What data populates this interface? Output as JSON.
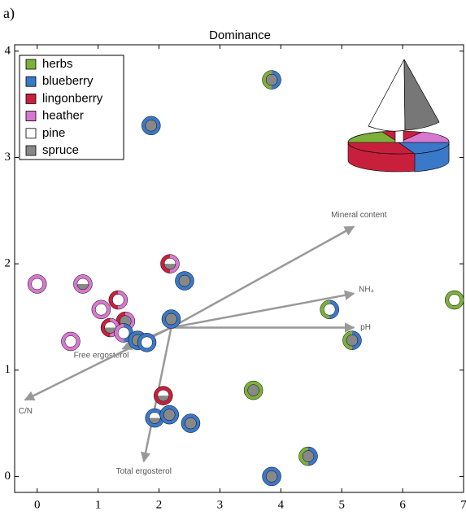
{
  "panel_label": "a)",
  "chart_data": {
    "type": "scatter",
    "title": "Dominance",
    "xlim": [
      -0.37,
      7.0
    ],
    "ylim": [
      -0.15,
      4.06
    ],
    "xticks": [
      0,
      1,
      2,
      3,
      4,
      5,
      6,
      7
    ],
    "yticks": [
      0,
      1,
      2,
      3,
      4
    ],
    "legend_position": "upper left",
    "series": [
      {
        "name": "herbs",
        "color": "#7db03a"
      },
      {
        "name": "blueberry",
        "color": "#3a78c9"
      },
      {
        "name": "lingonberry",
        "color": "#c8203c"
      },
      {
        "name": "heather",
        "color": "#d877d0"
      },
      {
        "name": "pine",
        "color": "#ffffff"
      },
      {
        "name": "spruce",
        "color": "#888888"
      }
    ],
    "points": [
      {
        "x": 3.85,
        "y": 3.73,
        "ring": [
          0,
          1
        ],
        "center": [
          5
        ]
      },
      {
        "x": 1.87,
        "y": 3.3,
        "ring": [
          1
        ],
        "center": [
          5
        ]
      },
      {
        "x": 0.0,
        "y": 1.81,
        "ring": [
          3
        ],
        "center": [
          4
        ]
      },
      {
        "x": 0.75,
        "y": 1.81,
        "ring": [
          3
        ],
        "center": [
          4,
          5
        ]
      },
      {
        "x": 1.33,
        "y": 1.66,
        "ring": [
          2,
          3
        ],
        "center": [
          4
        ]
      },
      {
        "x": 1.05,
        "y": 1.57,
        "ring": [
          3
        ],
        "center": [
          4
        ]
      },
      {
        "x": 1.45,
        "y": 1.46,
        "ring": [
          2,
          3
        ],
        "center": [
          5
        ]
      },
      {
        "x": 1.2,
        "y": 1.4,
        "ring": [
          2,
          3
        ],
        "center": [
          4,
          5
        ]
      },
      {
        "x": 1.42,
        "y": 1.35,
        "ring": [
          3,
          1
        ],
        "center": [
          4
        ]
      },
      {
        "x": 0.55,
        "y": 1.27,
        "ring": [
          3
        ],
        "center": [
          4
        ]
      },
      {
        "x": 1.65,
        "y": 1.28,
        "ring": [
          1
        ],
        "center": [
          5
        ]
      },
      {
        "x": 1.8,
        "y": 1.26,
        "ring": [
          1
        ],
        "center": [
          4
        ]
      },
      {
        "x": 2.18,
        "y": 2.0,
        "ring": [
          2,
          3
        ],
        "center": [
          4,
          5
        ]
      },
      {
        "x": 2.42,
        "y": 1.84,
        "ring": [
          1
        ],
        "center": [
          5
        ]
      },
      {
        "x": 2.2,
        "y": 1.48,
        "ring": [
          1
        ],
        "center": [
          5
        ]
      },
      {
        "x": 4.8,
        "y": 1.57,
        "ring": [
          0,
          1
        ],
        "center": [
          4
        ]
      },
      {
        "x": 5.17,
        "y": 1.28,
        "ring": [
          0,
          1
        ],
        "center": [
          5
        ]
      },
      {
        "x": 6.85,
        "y": 1.66,
        "ring": [
          0
        ],
        "center": [
          4
        ]
      },
      {
        "x": 2.07,
        "y": 0.76,
        "ring": [
          2
        ],
        "center": [
          4,
          5
        ]
      },
      {
        "x": 1.93,
        "y": 0.55,
        "ring": [
          1
        ],
        "center": [
          4,
          5
        ]
      },
      {
        "x": 2.17,
        "y": 0.58,
        "ring": [
          1
        ],
        "center": [
          5
        ]
      },
      {
        "x": 2.52,
        "y": 0.5,
        "ring": [
          1
        ],
        "center": [
          5
        ]
      },
      {
        "x": 3.55,
        "y": 0.81,
        "ring": [
          0
        ],
        "center": [
          5
        ]
      },
      {
        "x": 4.45,
        "y": 0.19,
        "ring": [
          0,
          1
        ],
        "center": [
          5
        ]
      },
      {
        "x": 3.85,
        "y": 0.0,
        "ring": [
          1
        ],
        "center": [
          5
        ]
      }
    ],
    "vectors": [
      {
        "label": "Mineral content",
        "x": [
          2.2,
          5.2
        ],
        "y": [
          1.4,
          2.35
        ]
      },
      {
        "label": "NH₄",
        "x": [
          2.2,
          5.2
        ],
        "y": [
          1.4,
          1.72
        ]
      },
      {
        "label": "pH",
        "x": [
          2.2,
          5.2
        ],
        "y": [
          1.4,
          1.4
        ]
      },
      {
        "label": "Free ergosterol",
        "x": [
          2.2,
          1.4
        ],
        "y": [
          1.4,
          1.2
        ]
      },
      {
        "label": "C/N",
        "x": [
          2.2,
          -0.2
        ],
        "y": [
          1.4,
          0.72
        ]
      },
      {
        "label": "Total ergosterol",
        "x": [
          2.2,
          1.75
        ],
        "y": [
          1.4,
          0.14
        ]
      }
    ]
  }
}
